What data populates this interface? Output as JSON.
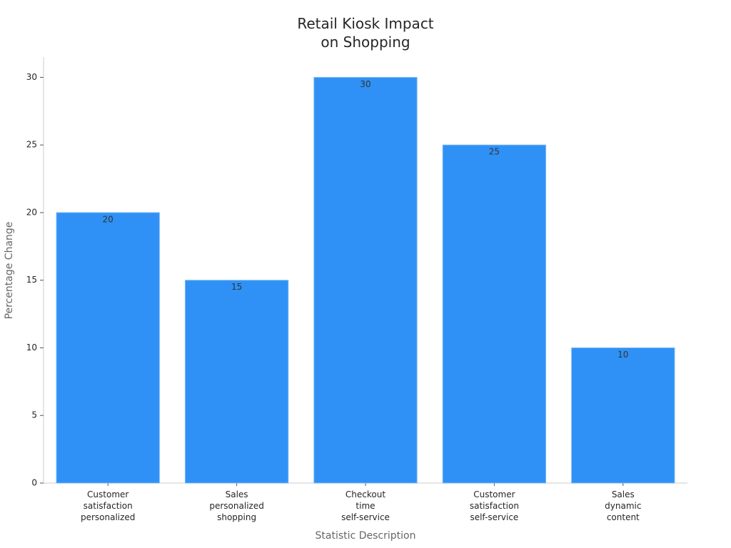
{
  "chart_data": {
    "type": "bar",
    "title": "Retail Kiosk Impact\non Shopping",
    "x_label": "Statistic Description",
    "y_label": "Percentage Change",
    "categories": [
      "Customer\nsatisfaction\npersonalized",
      "Sales\npersonalized\nshopping",
      "Checkout\ntime\nself-service",
      "Customer\nsatisfaction\nself-service",
      "Sales\ndynamic\ncontent"
    ],
    "values": [
      20,
      15,
      30,
      25,
      10
    ],
    "color": "#2f91f5",
    "ylim": [
      0,
      31.5
    ],
    "yticks": [
      0,
      5,
      10,
      15,
      20,
      25,
      30
    ]
  }
}
